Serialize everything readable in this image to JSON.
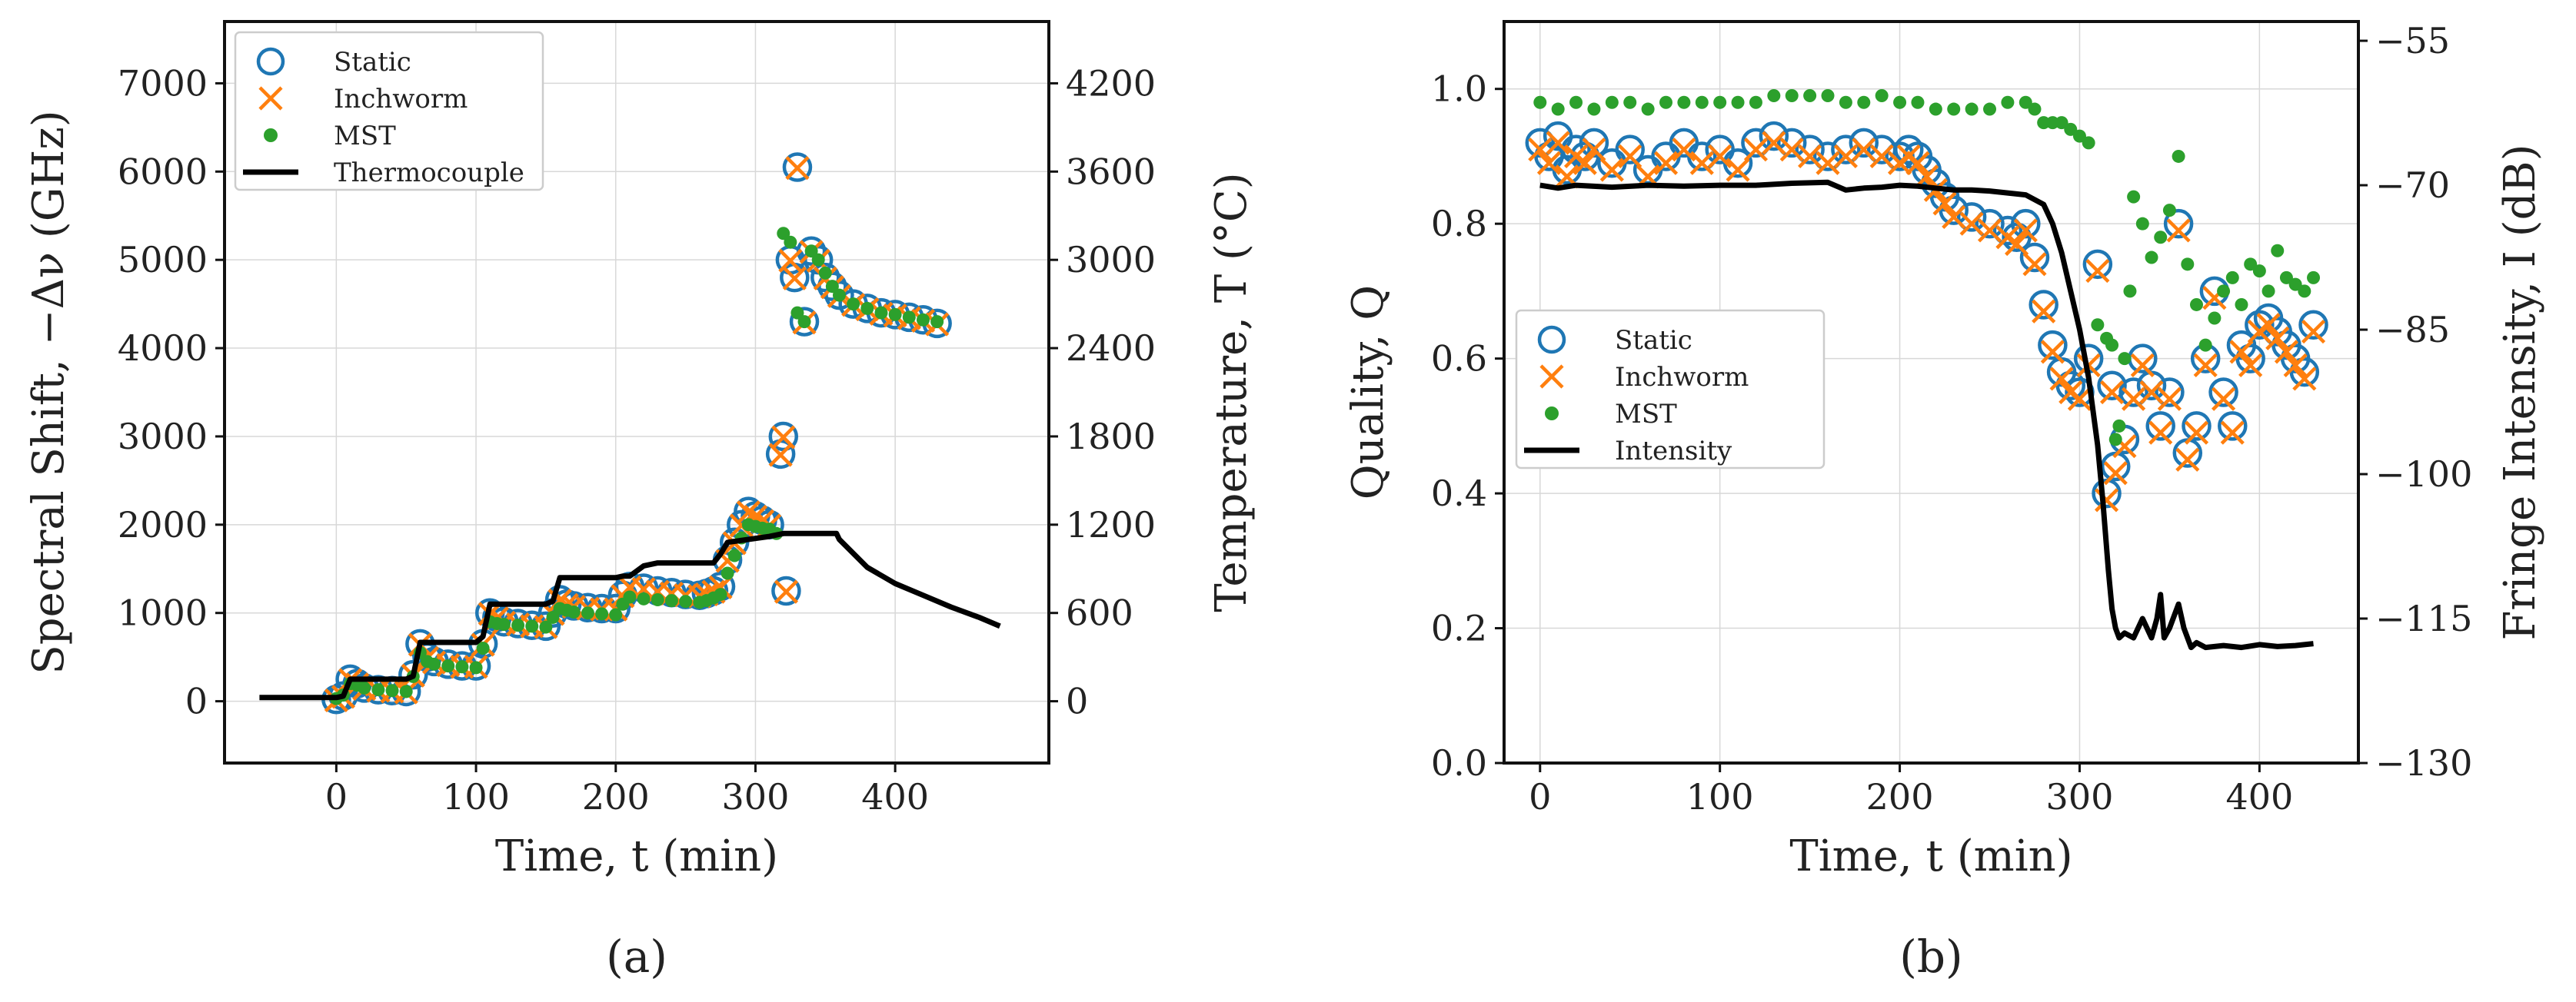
{
  "chart_data": [
    {
      "panel": "(a)",
      "type": "scatter",
      "xlabel": "Time, t (min)",
      "ylabel": "Spectral Shift, −Δν (GHz)",
      "y2label": "Temperature, T (°C)",
      "xlim": [
        -80,
        510
      ],
      "ylim": [
        -700,
        7700
      ],
      "y2lim": [
        -420,
        4620
      ],
      "xticks": [
        0,
        100,
        200,
        300,
        400
      ],
      "yticks": [
        0,
        1000,
        2000,
        3000,
        4000,
        5000,
        6000,
        7000
      ],
      "y2ticks": [
        0,
        600,
        1200,
        1800,
        2400,
        3000,
        3600,
        4200
      ],
      "grid": true,
      "legend": {
        "location": "top-left",
        "entries": [
          "Static",
          "Inchworm",
          "MST",
          "Thermocouple"
        ]
      },
      "series": [
        {
          "name": "Static",
          "marker": "open-circle",
          "color": "#1f77b4",
          "axis": "left",
          "x": [
            0,
            5,
            10,
            15,
            20,
            30,
            40,
            50,
            55,
            60,
            65,
            70,
            80,
            90,
            100,
            105,
            110,
            115,
            120,
            130,
            140,
            150,
            155,
            160,
            165,
            170,
            180,
            190,
            200,
            205,
            210,
            220,
            230,
            240,
            250,
            260,
            265,
            270,
            275,
            280,
            285,
            290,
            295,
            300,
            305,
            310,
            318,
            320,
            322,
            325,
            328,
            330,
            335,
            340,
            345,
            350,
            355,
            360,
            370,
            380,
            390,
            400,
            410,
            420,
            430
          ],
          "y": [
            20,
            60,
            250,
            200,
            150,
            130,
            120,
            110,
            300,
            650,
            500,
            450,
            420,
            400,
            400,
            650,
            1000,
            950,
            900,
            880,
            860,
            850,
            1000,
            1150,
            1100,
            1080,
            1060,
            1050,
            1050,
            1200,
            1300,
            1280,
            1250,
            1230,
            1210,
            1200,
            1220,
            1250,
            1300,
            1600,
            1800,
            2000,
            2150,
            2100,
            2050,
            2000,
            2800,
            3000,
            1250,
            5000,
            4800,
            6050,
            4300,
            5100,
            5000,
            4800,
            4700,
            4600,
            4500,
            4450,
            4400,
            4380,
            4350,
            4320,
            4280
          ]
        },
        {
          "name": "Inchworm",
          "marker": "x",
          "color": "#ff7f0e",
          "axis": "left",
          "x": [
            0,
            5,
            10,
            15,
            20,
            30,
            40,
            50,
            55,
            60,
            65,
            70,
            80,
            90,
            100,
            105,
            110,
            115,
            120,
            130,
            140,
            150,
            155,
            160,
            165,
            170,
            180,
            190,
            200,
            205,
            210,
            220,
            230,
            240,
            250,
            260,
            265,
            270,
            275,
            280,
            285,
            290,
            295,
            300,
            305,
            310,
            318,
            320,
            322,
            325,
            328,
            330,
            335,
            340,
            345,
            350,
            355,
            360,
            370,
            380,
            390,
            400,
            410,
            420,
            430
          ],
          "y": [
            10,
            50,
            240,
            190,
            140,
            120,
            110,
            100,
            290,
            640,
            490,
            440,
            410,
            390,
            390,
            640,
            990,
            940,
            890,
            870,
            850,
            840,
            990,
            1140,
            1090,
            1070,
            1050,
            1040,
            1040,
            1190,
            1290,
            1270,
            1240,
            1220,
            1200,
            1190,
            1210,
            1240,
            1290,
            1590,
            1790,
            1990,
            2140,
            2090,
            2040,
            1990,
            2790,
            2990,
            1240,
            4990,
            4790,
            6040,
            4290,
            5090,
            4990,
            4790,
            4690,
            4590,
            4490,
            4440,
            4390,
            4370,
            4340,
            4310,
            4270
          ]
        },
        {
          "name": "MST",
          "marker": "dot",
          "color": "#2ca02c",
          "axis": "left",
          "x": [
            0,
            5,
            10,
            15,
            20,
            30,
            40,
            50,
            55,
            60,
            65,
            70,
            80,
            90,
            100,
            105,
            110,
            115,
            120,
            130,
            140,
            150,
            155,
            160,
            165,
            170,
            180,
            190,
            200,
            205,
            210,
            220,
            230,
            240,
            250,
            260,
            265,
            270,
            275,
            280,
            285,
            290,
            295,
            300,
            305,
            310,
            315,
            320,
            325,
            330,
            335,
            340,
            345,
            350,
            355,
            360,
            370,
            380,
            390,
            400,
            410,
            420,
            430
          ],
          "y": [
            30,
            70,
            200,
            180,
            150,
            130,
            120,
            110,
            280,
            550,
            450,
            420,
            400,
            390,
            380,
            600,
            900,
            880,
            870,
            860,
            850,
            840,
            950,
            1050,
            1030,
            1010,
            1000,
            990,
            980,
            1100,
            1180,
            1160,
            1150,
            1140,
            1130,
            1120,
            1140,
            1170,
            1210,
            1450,
            1650,
            1850,
            2000,
            1980,
            1960,
            1950,
            1900,
            5300,
            5200,
            4400,
            4300,
            5100,
            5000,
            4850,
            4700,
            4600,
            4500,
            4450,
            4400,
            4380,
            4350,
            4320,
            4300
          ]
        },
        {
          "name": "Thermocouple",
          "marker": "line",
          "color": "#000000",
          "axis": "right",
          "x": [
            -55,
            0,
            5,
            10,
            50,
            55,
            60,
            100,
            105,
            110,
            150,
            155,
            160,
            200,
            205,
            210,
            220,
            230,
            270,
            275,
            280,
            310,
            320,
            358,
            360,
            380,
            400,
            420,
            440,
            460,
            475
          ],
          "T": [
            25,
            25,
            35,
            150,
            150,
            170,
            400,
            400,
            440,
            660,
            660,
            680,
            840,
            840,
            850,
            850,
            920,
            940,
            940,
            1000,
            1080,
            1120,
            1140,
            1140,
            1100,
            910,
            800,
            720,
            640,
            570,
            510
          ]
        }
      ]
    },
    {
      "panel": "(b)",
      "type": "scatter",
      "xlabel": "Time, t (min)",
      "ylabel": "Quality, Q",
      "y2label": "Fringe Intensity, I (dB)",
      "xlim": [
        -20,
        455
      ],
      "ylim": [
        0,
        1.1
      ],
      "y2lim": [
        -130,
        -53
      ],
      "xticks": [
        0,
        100,
        200,
        300,
        400
      ],
      "yticks": [
        0.0,
        0.2,
        0.4,
        0.6,
        0.8,
        1.0
      ],
      "y2ticks": [
        -130,
        -115,
        -100,
        -85,
        -70,
        -55
      ],
      "grid": true,
      "legend": {
        "location": "center-left",
        "entries": [
          "Static",
          "Inchworm",
          "MST",
          "Intensity"
        ]
      },
      "series": [
        {
          "name": "Static",
          "marker": "open-circle",
          "color": "#1f77b4",
          "axis": "left",
          "x": [
            0,
            5,
            10,
            15,
            20,
            25,
            30,
            40,
            50,
            60,
            70,
            80,
            90,
            100,
            110,
            120,
            130,
            140,
            150,
            160,
            170,
            180,
            190,
            200,
            205,
            210,
            215,
            220,
            225,
            230,
            240,
            250,
            260,
            265,
            270,
            275,
            280,
            285,
            290,
            295,
            300,
            305,
            310,
            315,
            318,
            320,
            325,
            330,
            335,
            340,
            345,
            350,
            355,
            360,
            365,
            370,
            375,
            380,
            385,
            390,
            395,
            400,
            405,
            410,
            415,
            420,
            425,
            430
          ],
          "y": [
            0.92,
            0.9,
            0.93,
            0.88,
            0.91,
            0.9,
            0.92,
            0.89,
            0.91,
            0.88,
            0.9,
            0.92,
            0.9,
            0.91,
            0.89,
            0.92,
            0.93,
            0.92,
            0.91,
            0.9,
            0.91,
            0.92,
            0.91,
            0.9,
            0.91,
            0.9,
            0.88,
            0.86,
            0.84,
            0.82,
            0.81,
            0.8,
            0.79,
            0.78,
            0.8,
            0.75,
            0.68,
            0.62,
            0.58,
            0.56,
            0.55,
            0.6,
            0.74,
            0.4,
            0.56,
            0.44,
            0.48,
            0.55,
            0.6,
            0.56,
            0.5,
            0.55,
            0.8,
            0.46,
            0.5,
            0.6,
            0.7,
            0.55,
            0.5,
            0.62,
            0.6,
            0.65,
            0.66,
            0.64,
            0.62,
            0.6,
            0.58,
            0.65
          ]
        },
        {
          "name": "Inchworm",
          "marker": "x",
          "color": "#ff7f0e",
          "axis": "left",
          "x": [
            0,
            5,
            10,
            15,
            20,
            25,
            30,
            40,
            50,
            60,
            70,
            80,
            90,
            100,
            110,
            120,
            130,
            140,
            150,
            160,
            170,
            180,
            190,
            200,
            205,
            210,
            215,
            220,
            225,
            230,
            240,
            250,
            260,
            265,
            270,
            275,
            280,
            285,
            290,
            295,
            300,
            305,
            310,
            315,
            318,
            320,
            325,
            330,
            335,
            340,
            345,
            350,
            355,
            360,
            365,
            370,
            375,
            380,
            385,
            390,
            395,
            400,
            405,
            410,
            415,
            420,
            425,
            430
          ],
          "y": [
            0.91,
            0.89,
            0.92,
            0.87,
            0.9,
            0.89,
            0.91,
            0.88,
            0.9,
            0.87,
            0.89,
            0.91,
            0.89,
            0.9,
            0.88,
            0.91,
            0.92,
            0.91,
            0.9,
            0.89,
            0.9,
            0.91,
            0.9,
            0.89,
            0.9,
            0.89,
            0.87,
            0.85,
            0.83,
            0.81,
            0.8,
            0.79,
            0.78,
            0.77,
            0.79,
            0.74,
            0.67,
            0.61,
            0.57,
            0.55,
            0.54,
            0.59,
            0.73,
            0.39,
            0.55,
            0.43,
            0.47,
            0.54,
            0.59,
            0.55,
            0.49,
            0.54,
            0.79,
            0.45,
            0.49,
            0.59,
            0.69,
            0.54,
            0.49,
            0.61,
            0.59,
            0.64,
            0.65,
            0.63,
            0.61,
            0.59,
            0.57,
            0.64
          ]
        },
        {
          "name": "MST",
          "marker": "dot",
          "color": "#2ca02c",
          "axis": "left",
          "x": [
            0,
            10,
            20,
            30,
            40,
            50,
            60,
            70,
            80,
            90,
            100,
            110,
            120,
            130,
            140,
            150,
            160,
            170,
            180,
            190,
            200,
            210,
            220,
            230,
            240,
            250,
            260,
            270,
            275,
            280,
            285,
            290,
            295,
            300,
            305,
            310,
            315,
            318,
            320,
            322,
            325,
            328,
            330,
            335,
            340,
            345,
            350,
            355,
            360,
            365,
            370,
            375,
            380,
            385,
            390,
            395,
            400,
            405,
            410,
            415,
            420,
            425,
            430
          ],
          "y": [
            0.98,
            0.97,
            0.98,
            0.97,
            0.98,
            0.98,
            0.97,
            0.98,
            0.98,
            0.98,
            0.98,
            0.98,
            0.98,
            0.99,
            0.99,
            0.99,
            0.99,
            0.98,
            0.98,
            0.99,
            0.98,
            0.98,
            0.97,
            0.97,
            0.97,
            0.97,
            0.98,
            0.98,
            0.97,
            0.95,
            0.95,
            0.95,
            0.94,
            0.93,
            0.92,
            0.65,
            0.63,
            0.62,
            0.48,
            0.5,
            0.6,
            0.7,
            0.84,
            0.8,
            0.75,
            0.78,
            0.82,
            0.9,
            0.74,
            0.68,
            0.62,
            0.66,
            0.7,
            0.72,
            0.68,
            0.74,
            0.73,
            0.7,
            0.76,
            0.72,
            0.71,
            0.7,
            0.72
          ]
        },
        {
          "name": "Intensity",
          "marker": "line",
          "color": "#000000",
          "axis": "right",
          "x": [
            0,
            10,
            20,
            40,
            60,
            80,
            100,
            120,
            140,
            160,
            170,
            180,
            190,
            200,
            210,
            220,
            230,
            240,
            250,
            260,
            270,
            280,
            285,
            290,
            295,
            300,
            305,
            310,
            313,
            316,
            318,
            320,
            322,
            325,
            330,
            335,
            340,
            343,
            345,
            347,
            350,
            355,
            358,
            362,
            365,
            370,
            380,
            390,
            400,
            410,
            420,
            430
          ],
          "y": [
            -70,
            -70.3,
            -70,
            -70.2,
            -70,
            -70.1,
            -70,
            -70,
            -69.8,
            -69.7,
            -70.5,
            -70.3,
            -70.2,
            -70,
            -70.1,
            -70.3,
            -70.5,
            -70.5,
            -70.6,
            -70.8,
            -71,
            -72,
            -74,
            -77,
            -81,
            -85,
            -90,
            -97,
            -103,
            -110,
            -114,
            -116,
            -117,
            -116.5,
            -117,
            -115,
            -117,
            -115,
            -112.5,
            -117,
            -116,
            -113.5,
            -116,
            -118,
            -117.5,
            -118,
            -117.8,
            -118,
            -117.7,
            -117.9,
            -117.8,
            -117.6
          ]
        }
      ]
    }
  ]
}
